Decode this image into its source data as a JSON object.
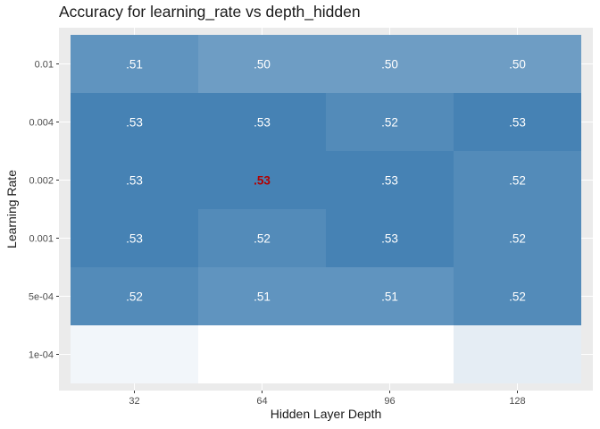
{
  "chart_data": {
    "type": "heatmap",
    "title": "Accuracy for learning_rate vs depth_hidden",
    "xlabel": "Hidden Layer Depth",
    "ylabel": "Learning Rate",
    "x_categories": [
      "32",
      "64",
      "96",
      "128"
    ],
    "y_categories": [
      "0.01",
      "0.004",
      "0.002",
      "0.001",
      "5e-04",
      "1e-04"
    ],
    "values": [
      [
        0.51,
        0.5,
        0.5,
        0.5
      ],
      [
        0.53,
        0.53,
        0.52,
        0.53
      ],
      [
        0.53,
        0.53,
        0.53,
        0.52
      ],
      [
        0.53,
        0.52,
        0.53,
        0.52
      ],
      [
        0.52,
        0.51,
        0.51,
        0.52
      ],
      [
        0.4,
        0.39,
        0.39,
        0.41
      ]
    ],
    "labels": [
      [
        ".51",
        ".50",
        ".50",
        ".50"
      ],
      [
        ".53",
        ".53",
        ".52",
        ".53"
      ],
      [
        ".53",
        ".53",
        ".53",
        ".52"
      ],
      [
        ".53",
        ".52",
        ".53",
        ".52"
      ],
      [
        ".52",
        ".51",
        ".51",
        ".52"
      ],
      [
        "",
        "",
        "",
        ""
      ]
    ],
    "highlight": {
      "row": 2,
      "col": 1,
      "color": "#b30000"
    },
    "color_low": "#ffffff",
    "color_high": "#4682b4",
    "color_range": [
      0.39,
      0.53
    ],
    "panel_background": "#ebebeb",
    "grid": true,
    "legend": "none"
  }
}
